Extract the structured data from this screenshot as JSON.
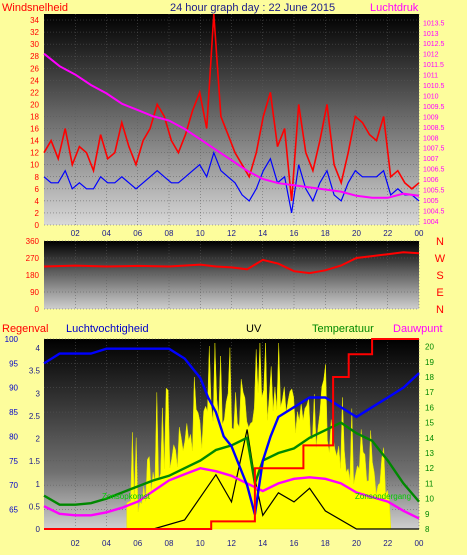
{
  "colors": {
    "background": "#fdfd9c",
    "wind": "#ff0000",
    "gust_line": "#0000ff",
    "pressure": "#ff00ff",
    "rain": "#ff0000",
    "humidity": "#0000ff",
    "uv": "#000000",
    "temperature": "#008800",
    "dewpoint": "#ff00ff",
    "solar": "#ffff00"
  },
  "chart_data": [
    {
      "type": "line",
      "title": "24 hour graph day : 22 June 2015",
      "left_label": "Windsnelheid",
      "right_label": "Luchtdruk",
      "x_ticks": [
        "02",
        "04",
        "06",
        "08",
        "10",
        "12",
        "14",
        "16",
        "18",
        "20",
        "22",
        "00"
      ],
      "y_left_ticks": [
        "0",
        "2",
        "4",
        "6",
        "8",
        "10",
        "12",
        "14",
        "16",
        "18",
        "20",
        "22",
        "24",
        "26",
        "28",
        "30",
        "32",
        "34"
      ],
      "y_left_range": [
        0,
        35
      ],
      "y_right_ticks": [
        "1004",
        "1004.5",
        "1005",
        "1005.5",
        "1006",
        "1006.5",
        "1007",
        "1007.5",
        "1008",
        "1008.5",
        "1009",
        "1009.5",
        "1010",
        "1010.5",
        "1011",
        "1011.5",
        "1012",
        "1012.5",
        "1013",
        "1013.5"
      ],
      "y_right_range": [
        1003.8,
        1013.9
      ],
      "grid": true,
      "series": [
        {
          "role": "gust",
          "values": [
            12,
            14,
            11,
            16,
            10,
            13,
            12,
            9,
            15,
            11,
            12,
            17,
            13,
            10,
            14,
            16,
            20,
            18,
            14,
            12,
            15,
            19,
            22,
            16,
            35,
            18,
            15,
            12,
            10,
            8,
            12,
            18,
            22,
            13,
            16,
            4,
            20,
            12,
            9,
            14,
            20,
            10,
            7,
            12,
            18,
            17,
            15,
            14,
            18,
            8,
            9,
            7,
            6,
            7
          ]
        },
        {
          "role": "average",
          "values": [
            8,
            7,
            7,
            9,
            6,
            7,
            6,
            6,
            8,
            7,
            7,
            8,
            7,
            6,
            7,
            8,
            9,
            8,
            7,
            7,
            8,
            9,
            10,
            8,
            12,
            9,
            8,
            7,
            5,
            4,
            6,
            9,
            11,
            7,
            8,
            2,
            10,
            6,
            4,
            7,
            9,
            5,
            4,
            7,
            9,
            8,
            8,
            8,
            9,
            5,
            6,
            5,
            5,
            4
          ]
        },
        {
          "role": "pressure",
          "x": [
            0,
            1,
            2,
            3,
            4,
            5,
            6,
            7,
            8,
            9,
            10,
            11,
            12,
            13,
            14,
            15,
            16,
            17,
            18,
            19,
            20,
            21,
            22,
            23,
            24
          ],
          "values": [
            1012,
            1011.4,
            1011,
            1010.5,
            1010.1,
            1009.6,
            1009.3,
            1009.0,
            1008.8,
            1008.4,
            1007.9,
            1007.4,
            1006.9,
            1006.4,
            1006.0,
            1005.8,
            1005.7,
            1005.6,
            1005.5,
            1005.4,
            1005.2,
            1005.1,
            1005.1,
            1005.3,
            1005.2
          ]
        }
      ]
    },
    {
      "type": "line",
      "y_ticks": [
        "360",
        "270",
        "180",
        "90",
        "0"
      ],
      "y_range": [
        0,
        360
      ],
      "compass": [
        "N",
        "W",
        "S",
        "E",
        "N"
      ],
      "series": [
        {
          "role": "direction",
          "x": [
            0,
            2,
            4,
            6,
            8,
            10,
            11,
            12,
            13,
            14,
            15,
            16,
            17,
            18,
            19,
            20,
            21,
            22,
            23,
            24
          ],
          "values": [
            225,
            230,
            225,
            228,
            225,
            235,
            225,
            220,
            210,
            260,
            240,
            200,
            190,
            205,
            230,
            270,
            280,
            290,
            300,
            295
          ]
        }
      ]
    },
    {
      "type": "line",
      "labels": {
        "rain": "Regenval",
        "humidity": "Luchtvochtigheid",
        "uv": "UV",
        "temperature": "Temperatuur",
        "dewpoint": "Dauwpunt"
      },
      "y_humidity_ticks": [
        "100",
        "95",
        "90",
        "85",
        "80",
        "75",
        "70",
        "65"
      ],
      "y_humidity_range": [
        61,
        100
      ],
      "y_uv_ticks": [
        "0",
        "0.5",
        "1",
        "1.5",
        "2",
        "2.5",
        "3",
        "3.5",
        "4"
      ],
      "y_uv_range": [
        0,
        4.2
      ],
      "y_temp_ticks": [
        "8",
        "9",
        "10",
        "11",
        "12",
        "13",
        "14",
        "15",
        "16",
        "17",
        "18",
        "19",
        "20"
      ],
      "y_temp_range": [
        8,
        20.5
      ],
      "x_ticks": [
        "02",
        "04",
        "06",
        "08",
        "10",
        "12",
        "14",
        "16",
        "18",
        "20",
        "22",
        "00"
      ],
      "annotations": [
        "Zonsopkomst",
        "Zonsondergang"
      ],
      "series": [
        {
          "role": "humidity",
          "x": [
            0,
            0.5,
            1,
            2,
            3,
            4,
            5,
            6,
            7,
            8,
            8.5,
            9,
            10,
            10.5,
            11,
            11.5,
            12,
            13,
            13.5,
            14,
            14.5,
            15,
            16,
            17,
            18,
            19,
            20,
            21,
            22,
            23,
            24
          ],
          "values": [
            95,
            96,
            97,
            97,
            97,
            98,
            98,
            98,
            98,
            98,
            97,
            96,
            92,
            88,
            85,
            80,
            78,
            70,
            64,
            75,
            80,
            84,
            86,
            88,
            88,
            86,
            84,
            86,
            88,
            90,
            93
          ]
        },
        {
          "role": "temperature",
          "x": [
            0,
            1,
            2,
            3,
            4,
            5,
            6,
            7,
            8,
            9,
            10,
            11,
            12,
            13,
            13.5,
            14,
            15,
            16,
            17,
            18,
            19,
            20,
            21,
            22,
            23,
            24
          ],
          "values": [
            10.2,
            9.6,
            9.6,
            9.7,
            10,
            10.4,
            10.8,
            11.2,
            11.5,
            12,
            12.5,
            13.2,
            13.5,
            14,
            11,
            12.5,
            13,
            13.3,
            14,
            14.5,
            15,
            14.3,
            13.8,
            12.5,
            11,
            9.8
          ]
        },
        {
          "role": "dewpoint",
          "x": [
            0,
            1,
            2,
            3,
            4,
            5,
            6,
            7,
            8,
            9,
            10,
            11,
            12,
            13,
            14,
            15,
            16,
            17,
            18,
            19,
            20,
            21,
            22,
            23,
            24
          ],
          "values": [
            9.5,
            9.0,
            8.9,
            8.9,
            9.1,
            9.4,
            9.8,
            10.5,
            11.2,
            11.6,
            12,
            11.8,
            11.5,
            11,
            10.5,
            11,
            11.3,
            11.4,
            11.3,
            11,
            10.4,
            10.1,
            9.8,
            9.2,
            8.7
          ]
        },
        {
          "role": "rain",
          "x": [
            0,
            10.7,
            10.7,
            13.5,
            13.5,
            16.6,
            16.6,
            18.5,
            18.5,
            19.5,
            19.5,
            21,
            21,
            24
          ],
          "values": [
            8,
            8,
            8.5,
            8.5,
            12,
            12,
            13.5,
            13.5,
            18,
            18,
            19.5,
            19.5,
            20.5,
            20.5
          ]
        },
        {
          "role": "uv",
          "x": [
            0,
            7,
            9,
            10,
            11,
            12,
            13,
            13.5,
            14,
            15,
            16,
            17,
            18,
            20,
            24
          ],
          "values": [
            0,
            0,
            0.2,
            0.7,
            1.2,
            0.6,
            2.2,
            1.1,
            0.3,
            0.8,
            0.6,
            0.9,
            0.4,
            0,
            0
          ]
        }
      ]
    }
  ]
}
